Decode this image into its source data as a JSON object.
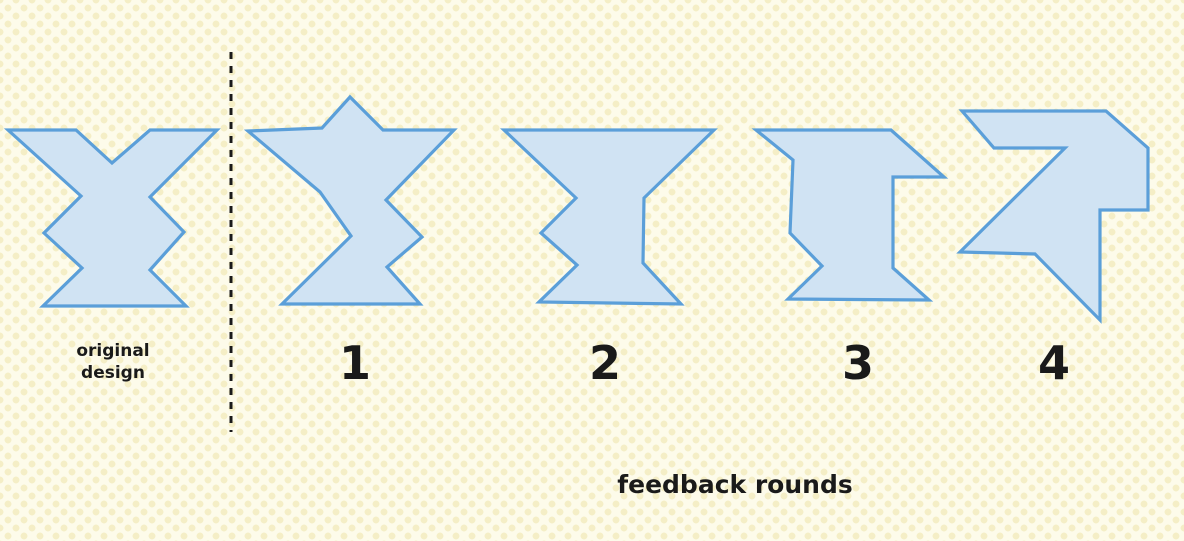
{
  "original": {
    "caption_line1": "original",
    "caption_line2": "design"
  },
  "rounds": [
    {
      "number": "1"
    },
    {
      "number": "2"
    },
    {
      "number": "3"
    },
    {
      "number": "4"
    }
  ],
  "footer": {
    "caption": "feedback rounds"
  },
  "colors": {
    "background": "#fdfbea",
    "dot": "#eee4a8",
    "shape_fill": "#d0e3f3",
    "shape_stroke": "#5b9fd9",
    "text": "#1a1a1a"
  }
}
